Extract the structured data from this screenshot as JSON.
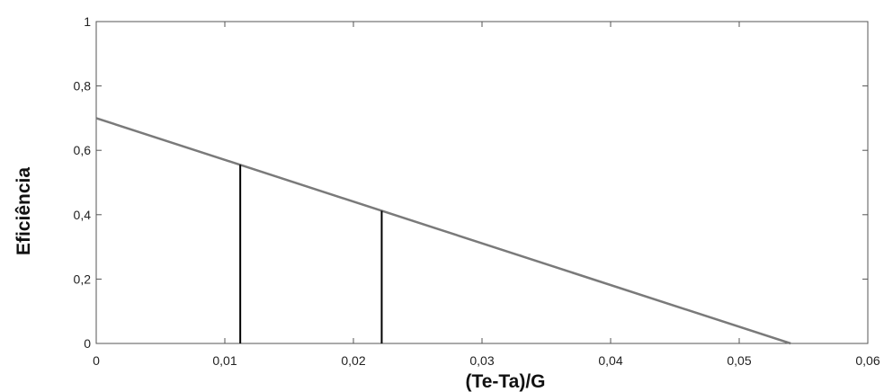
{
  "chart_data": {
    "type": "line",
    "title": "",
    "xlabel": "(Te-Ta)/G",
    "ylabel": "Eficiência",
    "xlim": [
      0,
      0.06
    ],
    "ylim": [
      0,
      1
    ],
    "grid": false,
    "x_ticks": [
      0,
      0.01,
      0.02,
      0.03,
      0.04,
      0.05,
      0.06
    ],
    "x_tick_labels": [
      "0",
      "0,01",
      "0,02",
      "0,03",
      "0,04",
      "0,05",
      "0,06"
    ],
    "y_ticks": [
      0,
      0.2,
      0.4,
      0.6,
      0.8,
      1
    ],
    "y_tick_labels": [
      "0",
      "0,2",
      "0,4",
      "0,6",
      "0,8",
      "1"
    ],
    "series": [
      {
        "x": [
          0,
          0.054
        ],
        "y": [
          0.7,
          0
        ]
      }
    ],
    "markers": [
      {
        "x": 0.0112,
        "y": 0.555
      },
      {
        "x": 0.0222,
        "y": 0.412
      }
    ],
    "colors": {
      "line": "#7a7a7a",
      "markers": "#000000",
      "frame": "#555555"
    }
  }
}
